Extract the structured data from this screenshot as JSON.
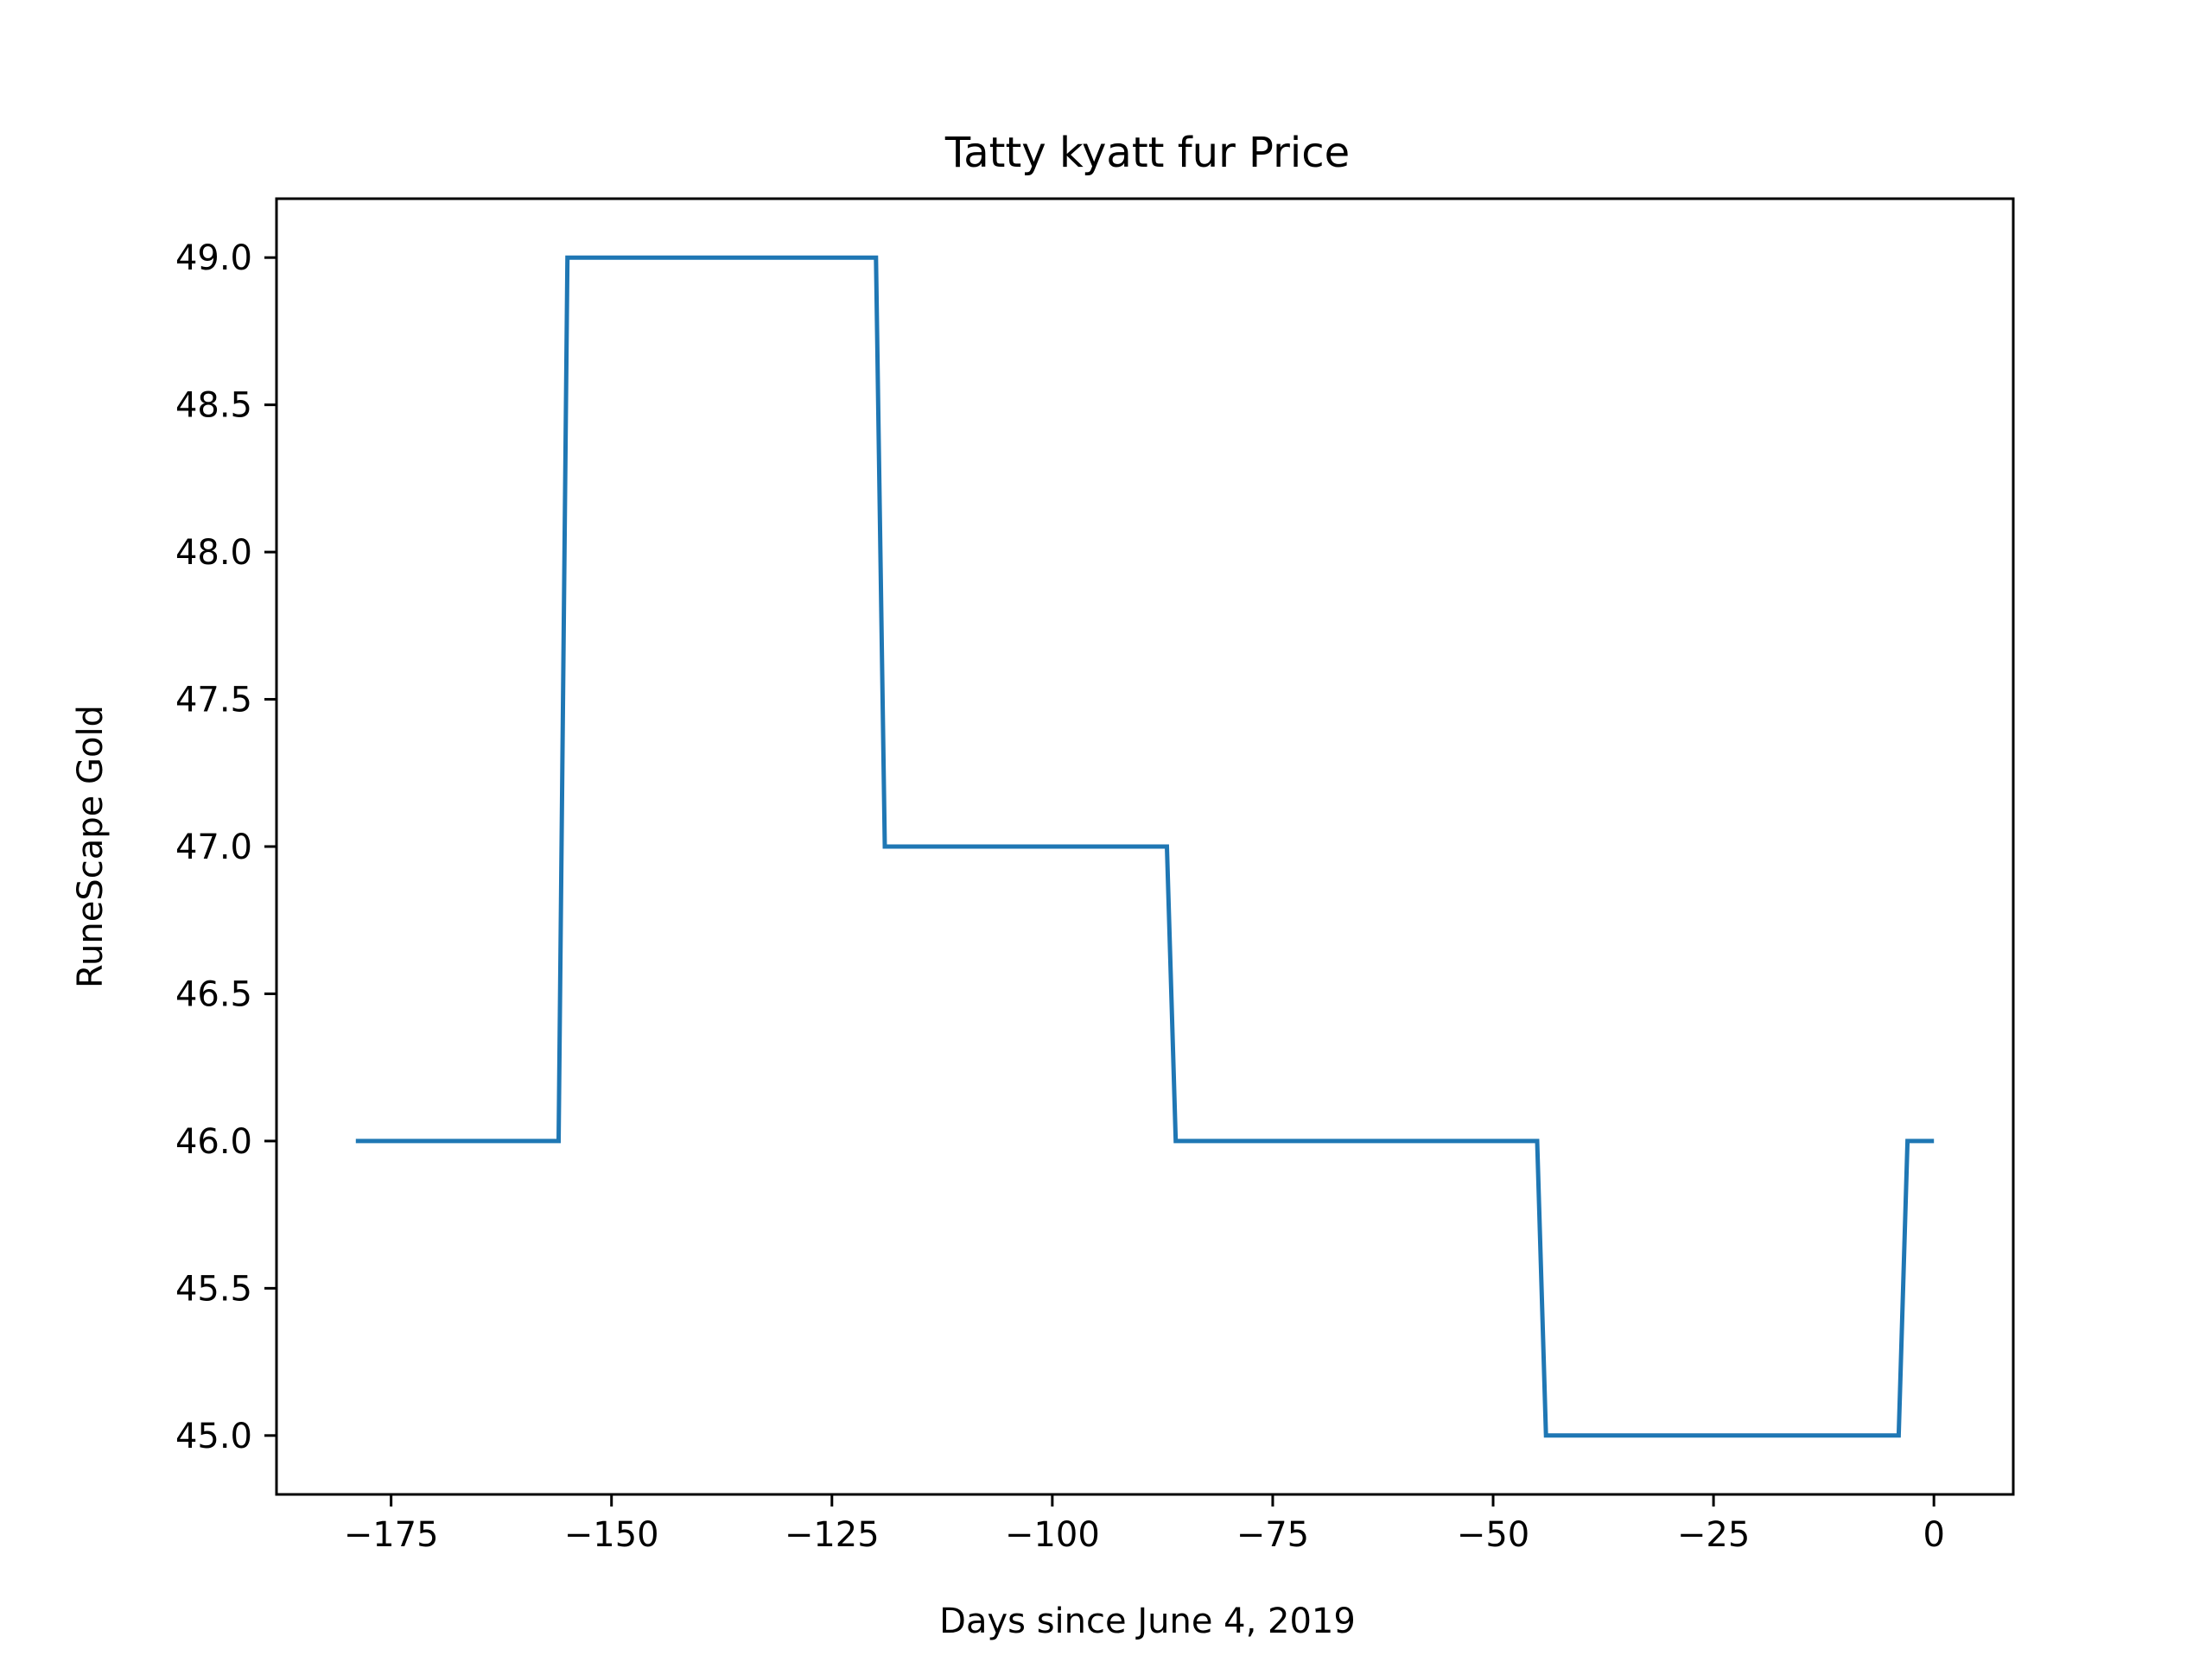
{
  "chart_data": {
    "type": "line",
    "title": "Tatty kyatt fur Price",
    "xlabel": "Days since June 4, 2019",
    "ylabel": "RuneScape Gold",
    "xlim": [
      -188,
      9
    ],
    "ylim": [
      44.8,
      49.2
    ],
    "xticks": [
      -175,
      -150,
      -125,
      -100,
      -75,
      -50,
      -25,
      0
    ],
    "xtick_labels": [
      "−175",
      "−150",
      "−125",
      "−100",
      "−75",
      "−50",
      "−25",
      "0"
    ],
    "yticks": [
      45.0,
      45.5,
      46.0,
      46.5,
      47.0,
      47.5,
      48.0,
      48.5,
      49.0
    ],
    "ytick_labels": [
      "45.0",
      "45.5",
      "46.0",
      "46.5",
      "47.0",
      "47.5",
      "48.0",
      "48.5",
      "49.0"
    ],
    "grid": false,
    "legend": "none",
    "series": [
      {
        "color": "#1f77b4",
        "x": [
          -179,
          -156,
          -155,
          -120,
          -119,
          -87,
          -86,
          -45,
          -44,
          -4,
          -3,
          0
        ],
        "y": [
          46,
          46,
          49,
          49,
          47,
          47,
          46,
          46,
          45,
          45,
          46,
          46
        ]
      }
    ]
  }
}
